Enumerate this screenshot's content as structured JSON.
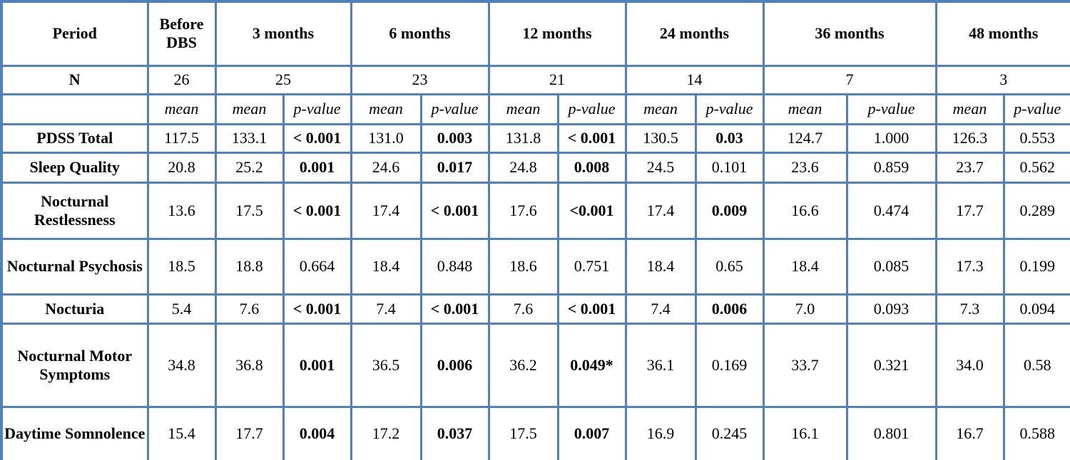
{
  "table": {
    "border_color": "#4F81BD",
    "header": {
      "period_label": "Period",
      "n_label": "N",
      "columns": [
        {
          "label": "Before DBS",
          "n": "26",
          "span": 1
        },
        {
          "label": "3 months",
          "n": "25",
          "span": 2
        },
        {
          "label": "6 months",
          "n": "23",
          "span": 2
        },
        {
          "label": "12 months",
          "n": "21",
          "span": 2
        },
        {
          "label": "24 months",
          "n": "14",
          "span": 2
        },
        {
          "label": "36 months",
          "n": "7",
          "span": 2
        },
        {
          "label": "48 months",
          "n": "3",
          "span": 2
        }
      ]
    },
    "subheader": {
      "mean": "mean",
      "pvalue": "p-value"
    },
    "rows": [
      {
        "label": "PDSS Total",
        "cells": [
          {
            "text": "117.5",
            "bold": false
          },
          {
            "text": "133.1",
            "bold": false
          },
          {
            "text": "< 0.001",
            "bold": true
          },
          {
            "text": "131.0",
            "bold": false
          },
          {
            "text": "0.003",
            "bold": true
          },
          {
            "text": "131.8",
            "bold": false
          },
          {
            "text": "< 0.001",
            "bold": true
          },
          {
            "text": "130.5",
            "bold": false
          },
          {
            "text": "0.03",
            "bold": true
          },
          {
            "text": "124.7",
            "bold": false
          },
          {
            "text": "1.000",
            "bold": false
          },
          {
            "text": "126.3",
            "bold": false
          },
          {
            "text": "0.553",
            "bold": false
          }
        ]
      },
      {
        "label": "Sleep Quality",
        "cells": [
          {
            "text": "20.8",
            "bold": false
          },
          {
            "text": "25.2",
            "bold": false
          },
          {
            "text": "0.001",
            "bold": true
          },
          {
            "text": "24.6",
            "bold": false
          },
          {
            "text": "0.017",
            "bold": true
          },
          {
            "text": "24.8",
            "bold": false
          },
          {
            "text": "0.008",
            "bold": true
          },
          {
            "text": "24.5",
            "bold": false
          },
          {
            "text": "0.101",
            "bold": false
          },
          {
            "text": "23.6",
            "bold": false
          },
          {
            "text": "0.859",
            "bold": false
          },
          {
            "text": "23.7",
            "bold": false
          },
          {
            "text": "0.562",
            "bold": false
          }
        ]
      },
      {
        "label": "Nocturnal Restlessness",
        "cells": [
          {
            "text": "13.6",
            "bold": false
          },
          {
            "text": "17.5",
            "bold": false
          },
          {
            "text": "< 0.001",
            "bold": true
          },
          {
            "text": "17.4",
            "bold": false
          },
          {
            "text": "< 0.001",
            "bold": true
          },
          {
            "text": "17.6",
            "bold": false
          },
          {
            "text": "<0.001",
            "bold": true
          },
          {
            "text": "17.4",
            "bold": false
          },
          {
            "text": "0.009",
            "bold": true
          },
          {
            "text": "16.6",
            "bold": false
          },
          {
            "text": "0.474",
            "bold": false
          },
          {
            "text": "17.7",
            "bold": false
          },
          {
            "text": "0.289",
            "bold": false
          }
        ]
      },
      {
        "label": "Nocturnal Psychosis",
        "cells": [
          {
            "text": "18.5",
            "bold": false
          },
          {
            "text": "18.8",
            "bold": false
          },
          {
            "text": "0.664",
            "bold": false
          },
          {
            "text": "18.4",
            "bold": false
          },
          {
            "text": "0.848",
            "bold": false
          },
          {
            "text": "18.6",
            "bold": false
          },
          {
            "text": "0.751",
            "bold": false
          },
          {
            "text": "18.4",
            "bold": false
          },
          {
            "text": "0.65",
            "bold": false
          },
          {
            "text": "18.4",
            "bold": false
          },
          {
            "text": "0.085",
            "bold": false
          },
          {
            "text": "17.3",
            "bold": false
          },
          {
            "text": "0.199",
            "bold": false
          }
        ]
      },
      {
        "label": "Nocturia",
        "cells": [
          {
            "text": "5.4",
            "bold": false
          },
          {
            "text": "7.6",
            "bold": false
          },
          {
            "text": "< 0.001",
            "bold": true
          },
          {
            "text": "7.4",
            "bold": false
          },
          {
            "text": "< 0.001",
            "bold": true
          },
          {
            "text": "7.6",
            "bold": false
          },
          {
            "text": "< 0.001",
            "bold": true
          },
          {
            "text": "7.4",
            "bold": false
          },
          {
            "text": "0.006",
            "bold": true
          },
          {
            "text": "7.0",
            "bold": false
          },
          {
            "text": "0.093",
            "bold": false
          },
          {
            "text": "7.3",
            "bold": false
          },
          {
            "text": "0.094",
            "bold": false
          }
        ]
      },
      {
        "label": "Nocturnal Motor Symptoms",
        "cells": [
          {
            "text": "34.8",
            "bold": false
          },
          {
            "text": "36.8",
            "bold": false
          },
          {
            "text": "0.001",
            "bold": true
          },
          {
            "text": "36.5",
            "bold": false
          },
          {
            "text": "0.006",
            "bold": true
          },
          {
            "text": "36.2",
            "bold": false
          },
          {
            "text": "0.049*",
            "bold": true
          },
          {
            "text": "36.1",
            "bold": false
          },
          {
            "text": "0.169",
            "bold": false
          },
          {
            "text": "33.7",
            "bold": false
          },
          {
            "text": "0.321",
            "bold": false
          },
          {
            "text": "34.0",
            "bold": false
          },
          {
            "text": "0.58",
            "bold": false
          }
        ]
      },
      {
        "label": "Daytime Somnolence",
        "cells": [
          {
            "text": "15.4",
            "bold": false
          },
          {
            "text": "17.7",
            "bold": false
          },
          {
            "text": "0.004",
            "bold": true
          },
          {
            "text": "17.2",
            "bold": false
          },
          {
            "text": "0.037",
            "bold": true
          },
          {
            "text": "17.5",
            "bold": false
          },
          {
            "text": "0.007",
            "bold": true
          },
          {
            "text": "16.9",
            "bold": false
          },
          {
            "text": "0.245",
            "bold": false
          },
          {
            "text": "16.1",
            "bold": false
          },
          {
            "text": "0.801",
            "bold": false
          },
          {
            "text": "16.7",
            "bold": false
          },
          {
            "text": "0.588",
            "bold": false
          }
        ]
      }
    ]
  }
}
